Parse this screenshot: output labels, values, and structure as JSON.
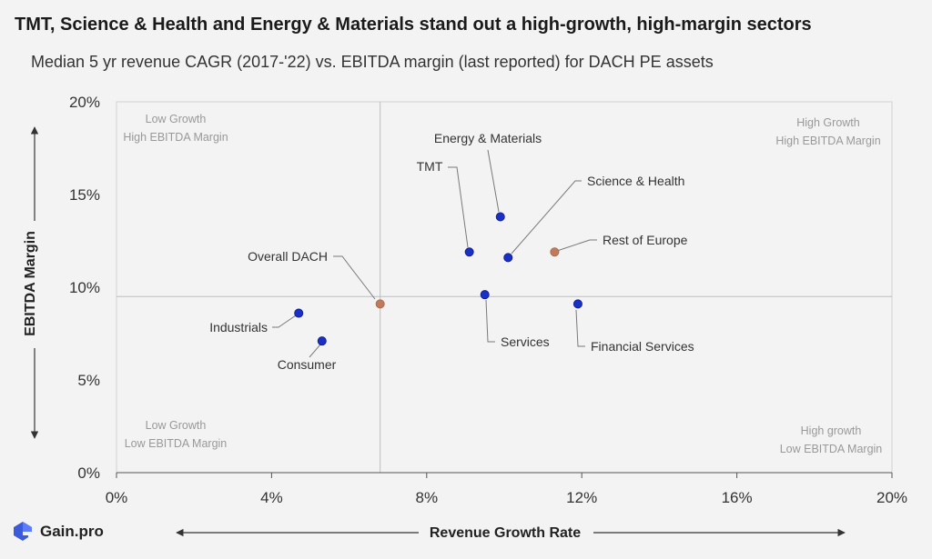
{
  "title": "TMT, Science & Health and Energy & Materials stand out a high-growth, high-margin sectors",
  "subtitle": "Median 5 yr revenue CAGR (2017-'22) vs. EBITDA margin (last reported) for DACH PE assets",
  "brand": {
    "name": "Gain.pro",
    "icon": "gain-pro-logo-icon"
  },
  "colors": {
    "primary": "#1a2fc4",
    "highlight": "#c07b5a",
    "grid": "#bdbdbd",
    "quadrant_label": "#999999"
  },
  "chart_data": {
    "type": "scatter",
    "xlabel": "Revenue Growth Rate",
    "ylabel": "EBITDA Margin",
    "xlim": [
      0,
      0.2
    ],
    "ylim": [
      0,
      0.2
    ],
    "x_ticks": [
      {
        "value": 0,
        "label": "0%"
      },
      {
        "value": 0.04,
        "label": "4%"
      },
      {
        "value": 0.08,
        "label": "8%"
      },
      {
        "value": 0.12,
        "label": "12%"
      },
      {
        "value": 0.16,
        "label": "16%"
      },
      {
        "value": 0.2,
        "label": "20%"
      }
    ],
    "y_ticks": [
      {
        "value": 0,
        "label": "0%"
      },
      {
        "value": 0.05,
        "label": "5%"
      },
      {
        "value": 0.1,
        "label": "10%"
      },
      {
        "value": 0.15,
        "label": "15%"
      },
      {
        "value": 0.2,
        "label": "20%"
      }
    ],
    "reference_lines": {
      "x": 0.068,
      "y": 0.095
    },
    "quadrant_labels": {
      "top_left": [
        "Low Growth",
        "High EBITDA Margin"
      ],
      "top_right": [
        "High Growth",
        "High EBITDA Margin"
      ],
      "bottom_left": [
        "Low Growth",
        "Low EBITDA Margin"
      ],
      "bottom_right": [
        "High growth",
        "Low EBITDA Margin"
      ]
    },
    "points": [
      {
        "label": "Energy & Materials",
        "x": 0.099,
        "y": 0.138,
        "highlight": false
      },
      {
        "label": "TMT",
        "x": 0.091,
        "y": 0.119,
        "highlight": false
      },
      {
        "label": "Science & Health",
        "x": 0.101,
        "y": 0.116,
        "highlight": false
      },
      {
        "label": "Rest of Europe",
        "x": 0.113,
        "y": 0.119,
        "highlight": true
      },
      {
        "label": "Overall DACH",
        "x": 0.068,
        "y": 0.091,
        "highlight": true
      },
      {
        "label": "Services",
        "x": 0.095,
        "y": 0.096,
        "highlight": false
      },
      {
        "label": "Financial Services",
        "x": 0.119,
        "y": 0.091,
        "highlight": false
      },
      {
        "label": "Industrials",
        "x": 0.047,
        "y": 0.086,
        "highlight": false
      },
      {
        "label": "Consumer",
        "x": 0.053,
        "y": 0.071,
        "highlight": false
      }
    ]
  }
}
